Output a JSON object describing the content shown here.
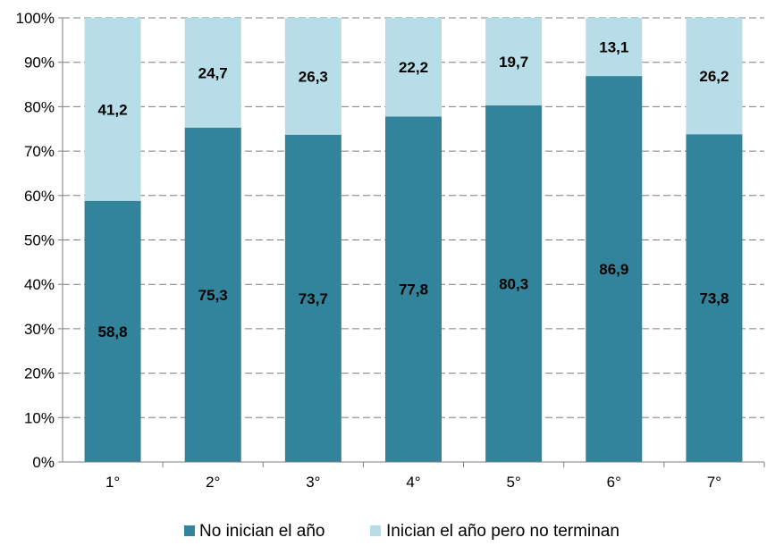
{
  "chart_data": {
    "type": "bar",
    "stacked": true,
    "categories": [
      "1°",
      "2°",
      "3°",
      "4°",
      "5°",
      "6°",
      "7°"
    ],
    "series": [
      {
        "name": "No inician el año",
        "values": [
          58.8,
          75.3,
          73.7,
          77.8,
          80.3,
          86.9,
          73.8
        ],
        "labels": [
          "58,8",
          "75,3",
          "73,7",
          "77,8",
          "80,3",
          "86,9",
          "73,8"
        ]
      },
      {
        "name": "Inician el año pero no terminan",
        "values": [
          41.2,
          24.7,
          26.3,
          22.2,
          19.7,
          13.1,
          26.2
        ],
        "labels": [
          "41,2",
          "24,7",
          "26,3",
          "22,2",
          "19,7",
          "13,1",
          "26,2"
        ]
      }
    ],
    "y_ticks": [
      "0%",
      "10%",
      "20%",
      "30%",
      "40%",
      "50%",
      "60%",
      "70%",
      "80%",
      "90%",
      "100%"
    ],
    "ylim": [
      0,
      100
    ],
    "grid": "dashed horizontal",
    "legend_position": "bottom",
    "colors": [
      "#31849b",
      "#b7dee8"
    ]
  }
}
